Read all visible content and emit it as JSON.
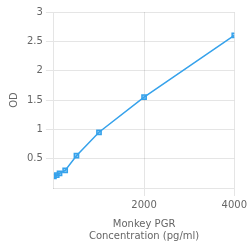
{
  "chart_data": {
    "type": "line",
    "x": [
      0,
      62.5,
      125,
      250,
      500,
      1000,
      2000,
      4000
    ],
    "values": [
      0.2,
      0.22,
      0.25,
      0.3,
      0.55,
      0.95,
      1.55,
      2.6
    ],
    "xlabel": [
      "Monkey PGR",
      "Concentration (pg/ml)"
    ],
    "ylabel": "OD",
    "xlim": [
      0,
      4000
    ],
    "xticks": [
      2000,
      4000
    ],
    "ylim": [
      0,
      3
    ],
    "yticks": [
      0.5,
      1,
      1.5,
      2,
      2.5,
      3
    ],
    "marker": "square",
    "grid": true
  }
}
